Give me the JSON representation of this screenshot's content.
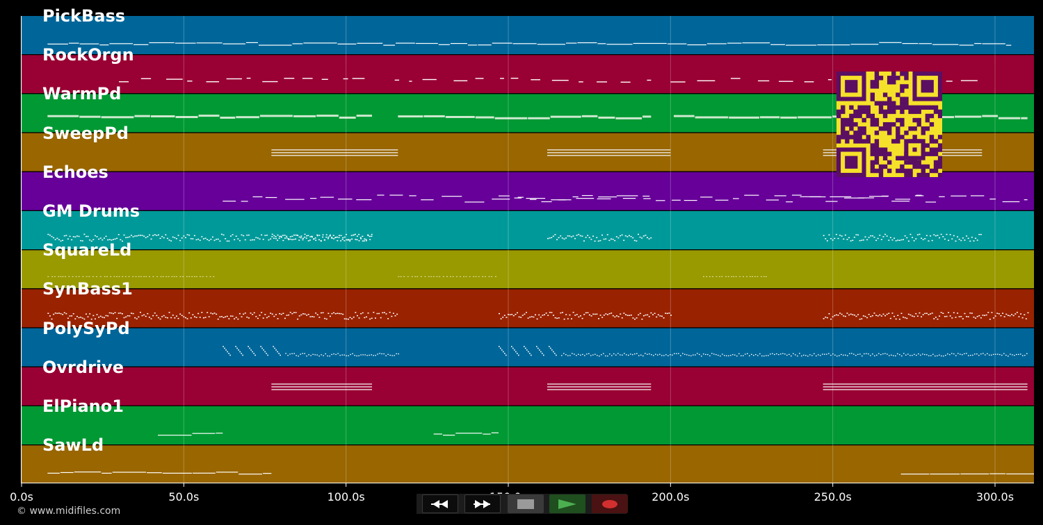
{
  "app": {
    "copyright": "© www.midifiles.com"
  },
  "timeline": {
    "max_seconds": 312,
    "ticks": [
      {
        "value": 0,
        "label": "0.0s"
      },
      {
        "value": 50,
        "label": "50.0s"
      },
      {
        "value": 100,
        "label": "100.0s"
      },
      {
        "value": 150,
        "label": "150.0s"
      },
      {
        "value": 200,
        "label": "200.0s"
      },
      {
        "value": 250,
        "label": "250.0s"
      },
      {
        "value": 300,
        "label": "300.0s"
      }
    ]
  },
  "tracks": [
    {
      "name": "PickBass",
      "color": "#006699",
      "style": "line",
      "segments": [
        [
          8,
          305
        ]
      ]
    },
    {
      "name": "RockOrgn",
      "color": "#990033",
      "style": "dash",
      "segments": [
        [
          30,
          108
        ],
        [
          115,
          194
        ],
        [
          200,
          296
        ]
      ]
    },
    {
      "name": "WarmPd",
      "color": "#009933",
      "style": "thick",
      "segments": [
        [
          8,
          108
        ],
        [
          116,
          194
        ],
        [
          201,
          310
        ]
      ]
    },
    {
      "name": "SweepPd",
      "color": "#996600",
      "style": "stack",
      "segments": [
        [
          77,
          116
        ],
        [
          162,
          200
        ],
        [
          247,
          296
        ]
      ]
    },
    {
      "name": "Echoes",
      "color": "#660099",
      "style": "echo",
      "segments": [
        [
          62,
          194
        ],
        [
          147,
          278
        ],
        [
          232,
          310
        ]
      ]
    },
    {
      "name": "GM Drums",
      "color": "#009999",
      "style": "dots",
      "segments": [
        [
          8,
          108
        ],
        [
          77,
          108
        ],
        [
          162,
          194
        ],
        [
          247,
          296
        ]
      ]
    },
    {
      "name": "SquareLd",
      "color": "#999900",
      "style": "sparse",
      "segments": [
        [
          8,
          60
        ],
        [
          116,
          146
        ],
        [
          210,
          230
        ]
      ]
    },
    {
      "name": "SynBass1",
      "color": "#992200",
      "style": "dots",
      "segments": [
        [
          8,
          116
        ],
        [
          147,
          200
        ],
        [
          247,
          310
        ]
      ]
    },
    {
      "name": "PolySyPd",
      "color": "#006699",
      "style": "diag",
      "segments": [
        [
          62,
          116
        ],
        [
          147,
          310
        ]
      ]
    },
    {
      "name": "Ovrdrive",
      "color": "#990033",
      "style": "stack",
      "segments": [
        [
          77,
          108
        ],
        [
          162,
          194
        ],
        [
          247,
          310
        ]
      ]
    },
    {
      "name": "ElPiano1",
      "color": "#009933",
      "style": "line",
      "segments": [
        [
          42,
          62
        ],
        [
          127,
          147
        ]
      ]
    },
    {
      "name": "SawLd",
      "color": "#996600",
      "style": "line",
      "segments": [
        [
          8,
          77
        ],
        [
          271,
          312
        ]
      ]
    }
  ],
  "transport": {
    "rewind_icon": "rewind-icon",
    "forward_icon": "fast-forward-icon",
    "stop_icon": "stop-icon",
    "play_icon": "play-icon",
    "record_icon": "record-icon",
    "play_color": "#4caf50",
    "record_color": "#d32f2f"
  },
  "qr": {
    "fg": "#5a0f63",
    "bg": "#f5e12a"
  }
}
